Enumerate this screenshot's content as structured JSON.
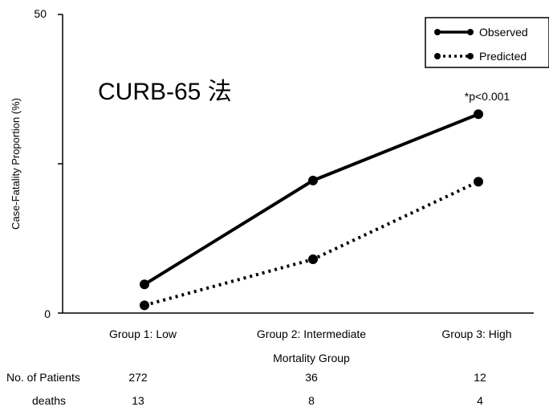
{
  "chart_data": {
    "type": "line",
    "title": "CURB-65 法",
    "ylabel": "Case-Fatality Proportion (%)",
    "xlabel": "Mortality Group",
    "categories": [
      "Group 1: Low",
      "Group 2: Intermediate",
      "Group 3: High"
    ],
    "ylim": [
      0,
      50
    ],
    "y_tick_labels": [
      "0",
      "50"
    ],
    "series": [
      {
        "name": "Observed",
        "values": [
          4.8,
          22.2,
          33.3
        ],
        "style": "solid",
        "color": "#000000"
      },
      {
        "name": "Predicted",
        "values": [
          1.3,
          9.0,
          22.0
        ],
        "style": "dotted",
        "color": "#000000"
      }
    ],
    "annotation": "*p<0.001",
    "legend_position": "top-right",
    "grid": false
  },
  "table": {
    "rows": [
      {
        "label": "No. of Patients",
        "values": [
          "272",
          "36",
          "12"
        ]
      },
      {
        "label": "deaths",
        "values": [
          "13",
          "8",
          "4"
        ]
      }
    ]
  }
}
